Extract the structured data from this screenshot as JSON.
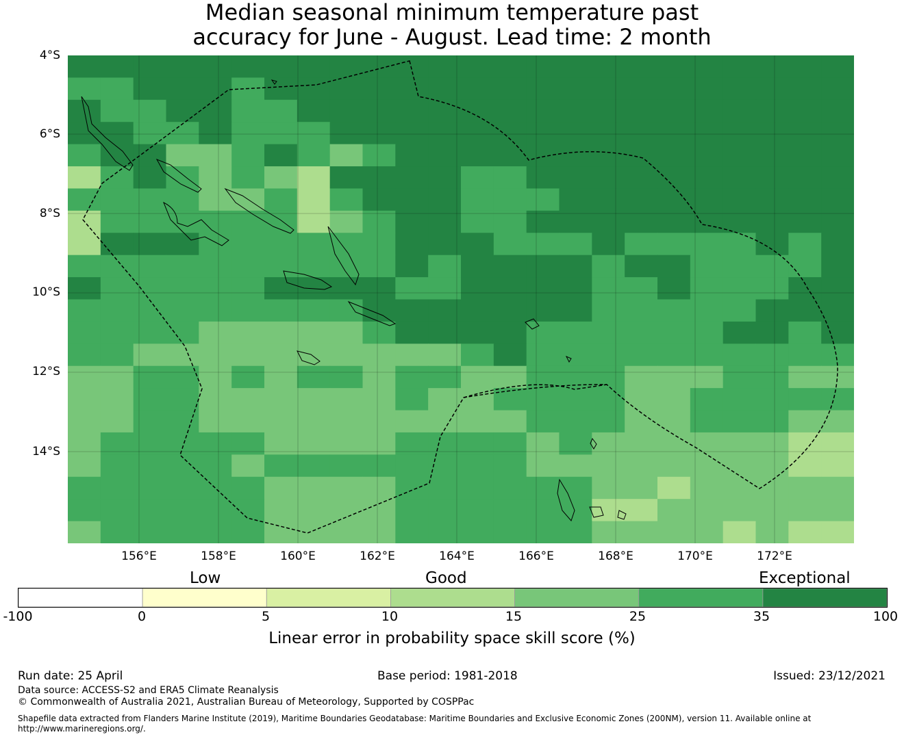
{
  "title": {
    "line1": "Median seasonal minimum temperature past",
    "line2": "accuracy for June - August. Lead time: 2 month"
  },
  "map": {
    "lat_labels": [
      "4°S",
      "6°S",
      "8°S",
      "10°S",
      "12°S",
      "14°S"
    ],
    "lon_labels": [
      "156°E",
      "158°E",
      "160°E",
      "162°E",
      "164°E",
      "166°E",
      "168°E",
      "170°E",
      "172°E"
    ],
    "grid_extent": {
      "lon_min": 154.25,
      "lon_max": 174.0,
      "lat_top": -4.0,
      "lat_bottom": -16.25
    },
    "cell_levels_note": "level index into colorbar bins: 3=10-15, 4=15-25, 5=25-35, 6=35-100",
    "cells": [
      "666666666666666666666666",
      "556665666666666666666666",
      "655665566666666666666666",
      "665565556666666666666666",
      "566445654566666666666666",
      "356545436666556666666666",
      "555544535666555666666666",
      "355555534566556666666666",
      "366655555566655565555656",
      "555555555565666656655556",
      "655555666655666655655566",
      "555555555666666655555666",
      "555544444566665555556656",
      "554444444444565555555555",
      "445545455455445554445544",
      "445544444454455554455555",
      "445544444444445554455544",
      "455555444455554544444433",
      "455554555555554444444433",
      "555555444455555544344444",
      "555555444455555533444444",
      "455555444455555544443433"
    ]
  },
  "legend": {
    "categories": [
      "Low",
      "Good",
      "Exceptional"
    ],
    "ticks": [
      "-100",
      "0",
      "5",
      "10",
      "15",
      "25",
      "35",
      "100"
    ],
    "colors": [
      "#ffffff",
      "#ffffcc",
      "#d9f0a3",
      "#addd8e",
      "#78c679",
      "#41ab5d",
      "#238443"
    ],
    "label": "Linear error in probability space skill score (%)"
  },
  "footer": {
    "run_date": "Run date: 25 April",
    "base_period": "Base period: 1981-2018",
    "issued": "Issued: 23/12/2021",
    "data_source": "Data source: ACCESS-S2 and ERA5 Climate Reanalysis",
    "copyright": "© Commonwealth of Australia 2021, Australian Bureau of Meteorology, Supported by COSPPac",
    "shapefile_line1": "Shapefile data extracted from Flanders Marine Institute (2019), Maritime Boundaries Geodatabase: Maritime Boundaries and Exclusive Economic Zones (200NM), version 11. Available online at",
    "shapefile_line2": "http://www.marineregions.org/."
  }
}
